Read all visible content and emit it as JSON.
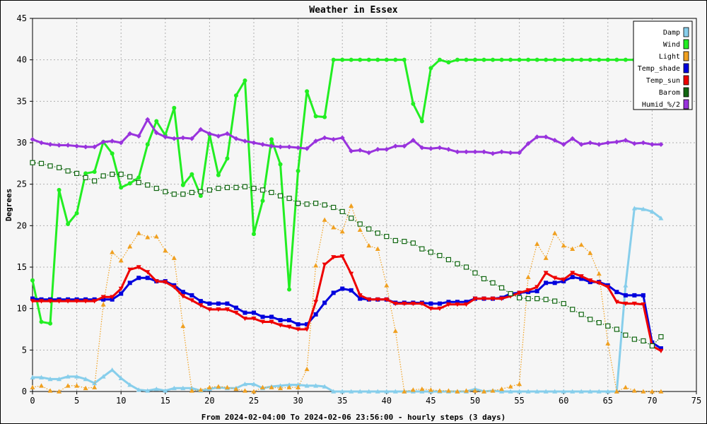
{
  "chart_data": {
    "type": "line",
    "title": "Weather in Essex",
    "xlabel": "From 2024-02-04:00 To 2024-02-06 23:56:00 - hourly steps (3 days)",
    "ylabel": "Degrees",
    "xlim": [
      0,
      75
    ],
    "ylim": [
      0,
      45
    ],
    "x_ticks": [
      "0",
      "5",
      "10",
      "15",
      "20",
      "25",
      "30",
      "35",
      "40",
      "45",
      "50",
      "55",
      "60",
      "65",
      "70",
      "75"
    ],
    "y_ticks": [
      "0",
      "5",
      "10",
      "15",
      "20",
      "25",
      "30",
      "35",
      "40",
      "45"
    ],
    "grid": true,
    "legend_position": "top-right",
    "x": [
      0,
      1,
      2,
      3,
      4,
      5,
      6,
      7,
      8,
      9,
      10,
      11,
      12,
      13,
      14,
      15,
      16,
      17,
      18,
      19,
      20,
      21,
      22,
      23,
      24,
      25,
      26,
      27,
      28,
      29,
      30,
      31,
      32,
      33,
      34,
      35,
      36,
      37,
      38,
      39,
      40,
      41,
      42,
      43,
      44,
      45,
      46,
      47,
      48,
      49,
      50,
      51,
      52,
      53,
      54,
      55,
      56,
      57,
      58,
      59,
      60,
      61,
      62,
      63,
      64,
      65,
      66,
      67,
      68,
      69,
      70,
      71
    ],
    "series": [
      {
        "name": "Damp",
        "color": "#87ceeb",
        "style": "solid",
        "marker": "triangle-up",
        "values": [
          1.7,
          1.7,
          1.5,
          1.5,
          1.8,
          1.8,
          1.5,
          1.0,
          1.8,
          2.6,
          1.6,
          0.8,
          0.2,
          0.1,
          0.3,
          0.1,
          0.4,
          0.4,
          0.4,
          0.1,
          0.3,
          0.5,
          0.4,
          0.4,
          0.9,
          0.9,
          0.4,
          0.6,
          0.7,
          0.8,
          0.8,
          0.7,
          0.7,
          0.6,
          0,
          0,
          0,
          0,
          0,
          0,
          0,
          0,
          0,
          0,
          0,
          0,
          0,
          0,
          0,
          0,
          0.3,
          0,
          0.1,
          0,
          0,
          0,
          0,
          0,
          0,
          0,
          0,
          0,
          0,
          0,
          0,
          0,
          0,
          12.8,
          22.1,
          22.0,
          21.7,
          20.9
        ]
      },
      {
        "name": "Wind",
        "color": "#22ee22",
        "style": "solid",
        "marker": "circle",
        "values": [
          13.4,
          8.4,
          8.2,
          24.3,
          20.2,
          21.5,
          26.3,
          26.5,
          30.1,
          28.7,
          24.6,
          25.1,
          25.8,
          29.8,
          32.6,
          30.9,
          34.2,
          24.9,
          26.2,
          23.6,
          31.0,
          26.1,
          28.1,
          35.7,
          37.5,
          19.0,
          23.0,
          30.4,
          27.4,
          12.3,
          26.6,
          36.2,
          33.2,
          33.1,
          40,
          40,
          40,
          40,
          40,
          40,
          40,
          40,
          40,
          34.7,
          32.6,
          39.0,
          40,
          39.7,
          40,
          40,
          40,
          40,
          40,
          40,
          40,
          40,
          40,
          40,
          40,
          40,
          40,
          40,
          40,
          40,
          40,
          40,
          40,
          40,
          40,
          40,
          40,
          40
        ]
      },
      {
        "name": "Light",
        "color": "#f0a020",
        "style": "dotted",
        "marker": "triangle-up",
        "values": [
          0.5,
          0.7,
          0.1,
          0.0,
          0.7,
          0.7,
          0.4,
          0.5,
          10.5,
          16.8,
          15.8,
          17.5,
          19.1,
          18.6,
          18.7,
          17.0,
          16.1,
          7.9,
          0.1,
          0.2,
          0.5,
          0.6,
          0.5,
          0.3,
          0.1,
          0.0,
          0.5,
          0.5,
          0.4,
          0.5,
          0.5,
          2.7,
          15.2,
          20.7,
          19.8,
          19.3,
          22.4,
          19.5,
          17.6,
          17.2,
          12.8,
          7.3,
          0.0,
          0.2,
          0.3,
          0.2,
          0.1,
          0.1,
          0.0,
          0.1,
          0.1,
          0.0,
          0.1,
          0.3,
          0.6,
          0.9,
          13.8,
          17.8,
          16.1,
          19.1,
          17.6,
          17.2,
          17.7,
          16.7,
          14.2,
          5.8,
          0.0,
          0.5,
          0.1,
          0.0,
          0.0,
          0.0
        ]
      },
      {
        "name": "Temp_shade",
        "color": "#0000dd",
        "style": "solid",
        "marker": "square",
        "values": [
          11.2,
          11.1,
          11.1,
          11.1,
          11.1,
          11.1,
          11.1,
          11.1,
          11.1,
          11.1,
          11.8,
          13.1,
          13.7,
          13.7,
          13.3,
          13.3,
          12.8,
          12.0,
          11.6,
          10.9,
          10.6,
          10.6,
          10.6,
          10.1,
          9.5,
          9.5,
          9.0,
          9.0,
          8.6,
          8.6,
          8.1,
          8.1,
          9.3,
          10.7,
          11.9,
          12.4,
          12.2,
          11.2,
          11.1,
          11.1,
          11.1,
          10.7,
          10.7,
          10.7,
          10.7,
          10.6,
          10.6,
          10.8,
          10.8,
          10.8,
          11.2,
          11.2,
          11.2,
          11.3,
          11.8,
          11.9,
          12.0,
          12.1,
          13.1,
          13.1,
          13.3,
          13.8,
          13.6,
          13.2,
          13.2,
          12.8,
          12.0,
          11.6,
          11.6,
          11.6,
          5.9,
          5.2
        ]
      },
      {
        "name": "Temp_sun",
        "color": "#ee0000",
        "style": "solid",
        "marker": "triangle-down",
        "values": [
          10.9,
          10.9,
          10.9,
          10.9,
          10.9,
          10.9,
          10.9,
          10.9,
          11.4,
          11.4,
          12.4,
          14.7,
          15.0,
          14.4,
          13.3,
          13.2,
          12.6,
          11.5,
          11.0,
          10.4,
          9.9,
          9.9,
          9.9,
          9.5,
          8.8,
          8.8,
          8.4,
          8.4,
          8.0,
          7.8,
          7.5,
          7.5,
          10.8,
          15.3,
          16.2,
          16.3,
          14.2,
          11.6,
          11.1,
          11.1,
          11.1,
          10.6,
          10.6,
          10.6,
          10.6,
          10.0,
          10.0,
          10.5,
          10.5,
          10.5,
          11.2,
          11.2,
          11.2,
          11.2,
          11.5,
          11.9,
          12.2,
          12.6,
          14.3,
          13.7,
          13.5,
          14.3,
          13.9,
          13.4,
          13.1,
          12.6,
          10.8,
          10.6,
          10.6,
          10.5,
          5.5,
          4.9
        ]
      },
      {
        "name": "Barom",
        "color": "#116611",
        "style": "dotted",
        "marker": "open-square",
        "values": [
          27.6,
          27.5,
          27.2,
          27.0,
          26.6,
          26.3,
          25.8,
          25.4,
          26.0,
          26.2,
          26.2,
          25.9,
          25.2,
          24.9,
          24.5,
          24.1,
          23.8,
          23.8,
          24.0,
          24.1,
          24.3,
          24.5,
          24.6,
          24.6,
          24.7,
          24.5,
          24.3,
          24.0,
          23.6,
          23.3,
          22.7,
          22.6,
          22.7,
          22.5,
          22.2,
          21.7,
          20.9,
          20.2,
          19.6,
          19.1,
          18.7,
          18.2,
          18.1,
          17.9,
          17.2,
          16.8,
          16.4,
          15.9,
          15.4,
          15.0,
          14.3,
          13.6,
          13.1,
          12.5,
          11.8,
          11.3,
          11.2,
          11.2,
          11.1,
          10.9,
          10.6,
          9.9,
          9.3,
          8.7,
          8.3,
          7.9,
          7.5,
          6.8,
          6.3,
          6.1,
          5.5,
          6.6
        ]
      },
      {
        "name": "Humid_%/2",
        "color": "#9933dd",
        "style": "solid",
        "marker": "diamond",
        "values": [
          30.4,
          30.0,
          29.8,
          29.7,
          29.7,
          29.6,
          29.5,
          29.5,
          30.1,
          30.2,
          30.0,
          31.1,
          30.8,
          32.8,
          31.2,
          30.7,
          30.5,
          30.6,
          30.5,
          31.6,
          31.1,
          30.8,
          31.1,
          30.5,
          30.2,
          30.0,
          29.8,
          29.6,
          29.5,
          29.5,
          29.4,
          29.3,
          30.2,
          30.6,
          30.4,
          30.6,
          29.0,
          29.1,
          28.8,
          29.2,
          29.2,
          29.6,
          29.6,
          30.3,
          29.4,
          29.3,
          29.4,
          29.2,
          28.9,
          28.9,
          28.9,
          28.9,
          28.7,
          28.9,
          28.8,
          28.8,
          29.9,
          30.7,
          30.7,
          30.3,
          29.8,
          30.5,
          29.8,
          30.0,
          29.8,
          30.0,
          30.1,
          30.3,
          29.9,
          30.0,
          29.8,
          29.8
        ]
      }
    ]
  }
}
